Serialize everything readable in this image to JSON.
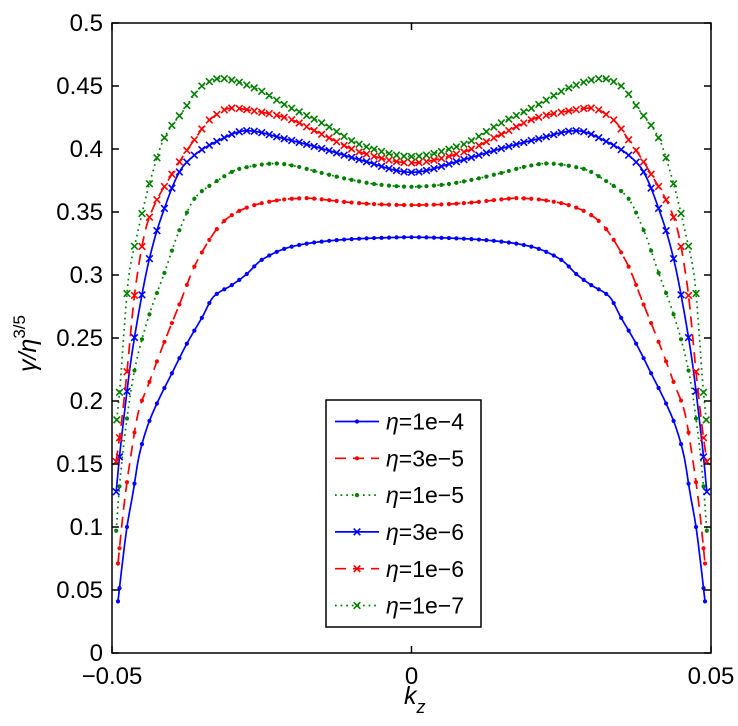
{
  "chart_data": {
    "type": "line",
    "title": "",
    "xlabel": "k_z",
    "xlabel_main": "k",
    "xlabel_sub": "z",
    "ylabel": "γ/η^(3/5)",
    "ylabel_main": "γ/η",
    "ylabel_sup": "3/5",
    "xlim": [
      -0.05,
      0.05
    ],
    "ylim": [
      0,
      0.5
    ],
    "xticks": [
      -0.05,
      0,
      0.05
    ],
    "xtick_labels": [
      "−0.05",
      "0",
      "0.05"
    ],
    "yticks": [
      0,
      0.05,
      0.1,
      0.15,
      0.2,
      0.25,
      0.3,
      0.35,
      0.4,
      0.45,
      0.5
    ],
    "ytick_labels": [
      "0",
      "0.05",
      "0.1",
      "0.15",
      "0.2",
      "0.25",
      "0.3",
      "0.35",
      "0.4",
      "0.45",
      "0.5"
    ],
    "grid": false,
    "legend_position": "inside lower-center",
    "symmetric_about_zero": true,
    "marker_step_k": 0.00125,
    "series": [
      {
        "name": "η=1e−4",
        "eta_symbol": "η",
        "label_rest": "=1e−4",
        "color": "#0000ff",
        "linestyle": "solid",
        "marker": "dot",
        "half_profile_k_v": [
          [
            0,
            0.33
          ],
          [
            0.005,
            0.3295
          ],
          [
            0.01,
            0.3285
          ],
          [
            0.015,
            0.3265
          ],
          [
            0.02,
            0.3225
          ],
          [
            0.025,
            0.312
          ],
          [
            0.0277,
            0.3
          ],
          [
            0.03,
            0.292
          ],
          [
            0.033,
            0.283
          ],
          [
            0.035,
            0.266
          ],
          [
            0.0375,
            0.2455
          ],
          [
            0.04,
            0.222
          ],
          [
            0.0425,
            0.198
          ],
          [
            0.044,
            0.181
          ],
          [
            0.0455,
            0.156
          ],
          [
            0.0465,
            0.127
          ],
          [
            0.0475,
            0.1
          ],
          [
            0.0483,
            0.07
          ],
          [
            0.049,
            0.041
          ]
        ]
      },
      {
        "name": "η=3e−5",
        "eta_symbol": "η",
        "label_rest": "=3e−5",
        "color": "#ff0000",
        "linestyle": "dashed",
        "marker": "dot",
        "half_profile_k_v": [
          [
            0,
            0.3555
          ],
          [
            0.005,
            0.356
          ],
          [
            0.01,
            0.3575
          ],
          [
            0.015,
            0.36
          ],
          [
            0.0175,
            0.361
          ],
          [
            0.02,
            0.3605
          ],
          [
            0.025,
            0.357
          ],
          [
            0.028,
            0.3525
          ],
          [
            0.031,
            0.344
          ],
          [
            0.0358,
            0.311
          ],
          [
            0.0388,
            0.276
          ],
          [
            0.0419,
            0.239
          ],
          [
            0.044,
            0.212
          ],
          [
            0.0455,
            0.193
          ],
          [
            0.047,
            0.152
          ],
          [
            0.048,
            0.117
          ],
          [
            0.0485,
            0.095
          ],
          [
            0.049,
            0.071
          ]
        ]
      },
      {
        "name": "η=1e−5",
        "eta_symbol": "η",
        "label_rest": "=1e−5",
        "color": "#007f00",
        "linestyle": "dotted",
        "marker": "dot",
        "half_profile_k_v": [
          [
            0,
            0.37
          ],
          [
            0.005,
            0.3715
          ],
          [
            0.01,
            0.3755
          ],
          [
            0.015,
            0.381
          ],
          [
            0.0195,
            0.3865
          ],
          [
            0.0225,
            0.3885
          ],
          [
            0.0285,
            0.3845
          ],
          [
            0.033,
            0.373
          ],
          [
            0.036,
            0.362
          ],
          [
            0.0388,
            0.335
          ],
          [
            0.0413,
            0.301
          ],
          [
            0.0438,
            0.268
          ],
          [
            0.0463,
            0.223
          ],
          [
            0.0478,
            0.175
          ],
          [
            0.0487,
            0.135
          ],
          [
            0.0493,
            0.097
          ]
        ]
      },
      {
        "name": "η=3e−6",
        "eta_symbol": "η",
        "label_rest": "=3e−6",
        "color": "#0000ff",
        "linestyle": "solid",
        "marker": "x",
        "half_profile_k_v": [
          [
            0,
            0.3815
          ],
          [
            0.0083,
            0.391
          ],
          [
            0.0147,
            0.4
          ],
          [
            0.0211,
            0.408
          ],
          [
            0.0275,
            0.4145
          ],
          [
            0.0325,
            0.406
          ],
          [
            0.038,
            0.387
          ],
          [
            0.0419,
            0.344
          ],
          [
            0.0438,
            0.312
          ],
          [
            0.0458,
            0.263
          ],
          [
            0.0469,
            0.23
          ],
          [
            0.048,
            0.1875
          ],
          [
            0.0487,
            0.158
          ],
          [
            0.0493,
            0.128
          ]
        ]
      },
      {
        "name": "η=1e−6",
        "eta_symbol": "η",
        "label_rest": "=1e−6",
        "color": "#ff0000",
        "linestyle": "dashed",
        "marker": "x",
        "half_profile_k_v": [
          [
            0,
            0.389
          ],
          [
            0.0083,
            0.397
          ],
          [
            0.0147,
            0.411
          ],
          [
            0.0211,
            0.425
          ],
          [
            0.026,
            0.43
          ],
          [
            0.03,
            0.4325
          ],
          [
            0.0335,
            0.424
          ],
          [
            0.0363,
            0.407
          ],
          [
            0.04,
            0.38
          ],
          [
            0.0441,
            0.341
          ],
          [
            0.046,
            0.293
          ],
          [
            0.0477,
            0.214
          ],
          [
            0.0485,
            0.18
          ],
          [
            0.0493,
            0.152
          ]
        ]
      },
      {
        "name": "η=1e−7",
        "eta_symbol": "η",
        "label_rest": "=1e−7",
        "color": "#007f00",
        "linestyle": "dotted",
        "marker": "x",
        "half_profile_k_v": [
          [
            0,
            0.394
          ],
          [
            0.0083,
            0.403
          ],
          [
            0.0147,
            0.42
          ],
          [
            0.0211,
            0.435
          ],
          [
            0.0265,
            0.449
          ],
          [
            0.0319,
            0.456
          ],
          [
            0.035,
            0.45
          ],
          [
            0.038,
            0.431
          ],
          [
            0.0413,
            0.4085
          ],
          [
            0.0436,
            0.375
          ],
          [
            0.0458,
            0.332
          ],
          [
            0.0472,
            0.299
          ],
          [
            0.048,
            0.255
          ],
          [
            0.0486,
            0.215
          ],
          [
            0.0492,
            0.185
          ]
        ]
      }
    ],
    "colors": {
      "blue": "#0000ff",
      "red": "#ff0000",
      "green": "#007f00",
      "frame": "#000000",
      "background": "#ffffff"
    }
  }
}
